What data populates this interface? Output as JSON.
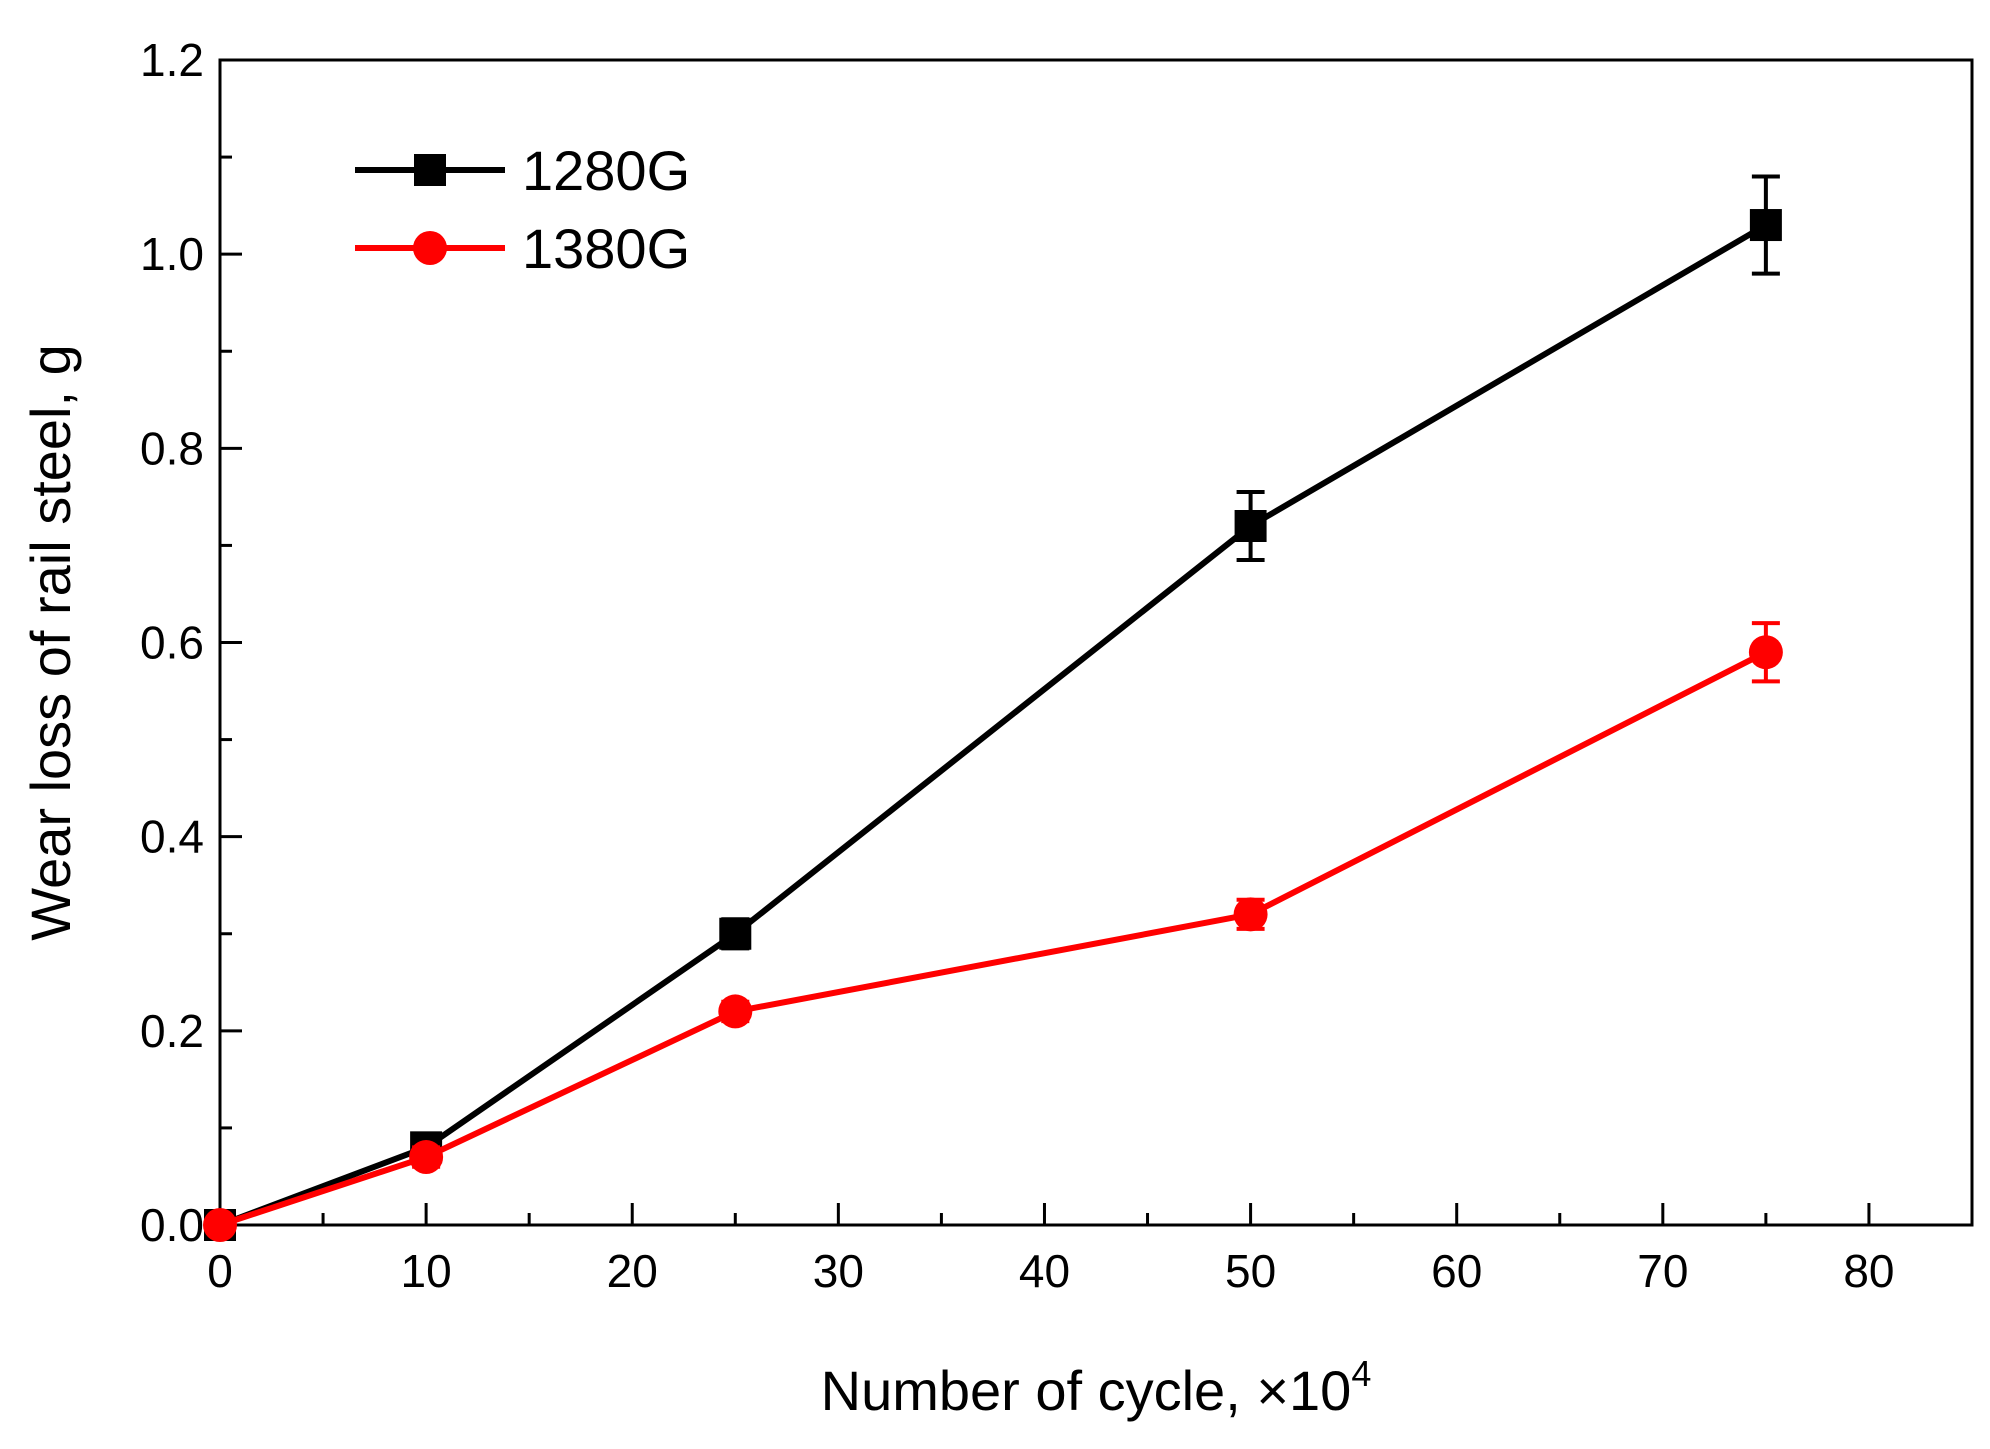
{
  "chart_data": {
    "type": "line",
    "title": "",
    "xlabel": "Number of cycle, ",
    "xlabel_multiplier": "×10",
    "xlabel_exponent": "4",
    "ylabel": "Wear loss of rail steel, g",
    "xlim": [
      0,
      85
    ],
    "ylim": [
      0,
      1.2
    ],
    "x_ticks": [
      0,
      10,
      20,
      30,
      40,
      50,
      60,
      70,
      80
    ],
    "y_ticks": [
      0.0,
      0.2,
      0.4,
      0.6,
      0.8,
      1.0,
      1.2
    ],
    "x_tick_labels": [
      "0",
      "10",
      "20",
      "30",
      "40",
      "50",
      "60",
      "70",
      "80"
    ],
    "y_tick_labels": [
      "0.0",
      "0.2",
      "0.4",
      "0.6",
      "0.8",
      "1.0",
      "1.2"
    ],
    "grid": false,
    "legend_position": "top-left",
    "series": [
      {
        "name": "1280G",
        "color": "#000000",
        "marker": "square",
        "x": [
          0,
          10,
          25,
          50,
          75
        ],
        "values": [
          0.0,
          0.08,
          0.3,
          0.72,
          1.03
        ],
        "errors": [
          0.0,
          0.01,
          0.015,
          0.035,
          0.05
        ]
      },
      {
        "name": "1380G",
        "color": "#ff0000",
        "marker": "circle",
        "x": [
          0,
          10,
          25,
          50,
          75
        ],
        "values": [
          0.0,
          0.07,
          0.22,
          0.32,
          0.59
        ],
        "errors": [
          0.0,
          0.01,
          0.01,
          0.015,
          0.03
        ]
      }
    ]
  }
}
